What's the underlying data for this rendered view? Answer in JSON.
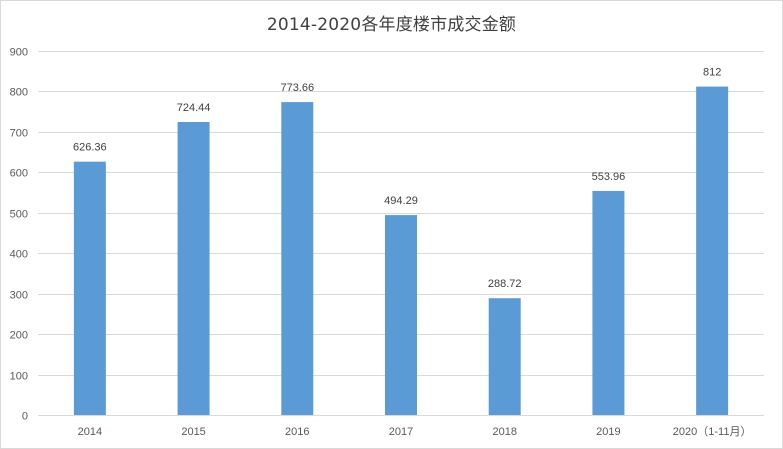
{
  "chart_data": {
    "type": "bar",
    "title": "2014-2020各年度楼市成交金额",
    "xlabel": "",
    "ylabel": "",
    "categories": [
      "2014",
      "2015",
      "2016",
      "2017",
      "2018",
      "2019",
      "2020（1-11月）"
    ],
    "values": [
      626.36,
      724.44,
      773.66,
      494.29,
      288.72,
      553.96,
      812
    ],
    "value_labels": [
      "626.36",
      "724.44",
      "773.66",
      "494.29",
      "288.72",
      "553.96",
      "812"
    ],
    "ylim": [
      0,
      900
    ],
    "yticks": [
      0,
      100,
      200,
      300,
      400,
      500,
      600,
      700,
      800,
      900
    ],
    "grid": true,
    "legend": "none",
    "bar_color": "#5b9bd5",
    "grid_color": "#d9d9d9",
    "text_color": "#595959"
  }
}
